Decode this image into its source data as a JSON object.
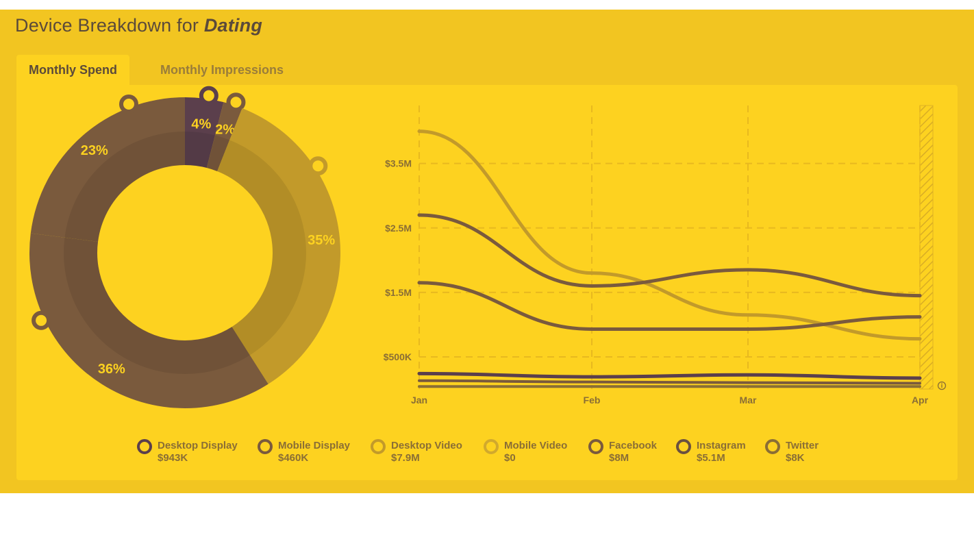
{
  "header": {
    "title_prefix": "Device Breakdown for",
    "title_subject": "Dating"
  },
  "tabs": [
    {
      "label": "Monthly Spend",
      "active": true
    },
    {
      "label": "Monthly Impressions",
      "active": false
    }
  ],
  "colors": {
    "background_band": "#f2c521",
    "panel": "#fdd220",
    "desktop_display": "#5b3f4c",
    "mobile_display": "#7a5a3d",
    "desktop_video": "#c29a2a",
    "mobile_video": "#d1a92d",
    "facebook": "#7a5a3d",
    "instagram": "#6a5040",
    "twitter": "#8a6e35",
    "grid": "#e8b91f",
    "axis_text": "#8a6e35"
  },
  "chart_data": [
    {
      "type": "pie",
      "style": "donut",
      "slices": [
        {
          "label": "4%",
          "value": 4,
          "color": "#5b3f4c",
          "series": "Desktop Display"
        },
        {
          "label": "2%",
          "value": 2,
          "color": "#7a5a3d",
          "series": "Mobile Display"
        },
        {
          "label": "35%",
          "value": 35,
          "color": "#c29a2a",
          "series": "Desktop Video"
        },
        {
          "label": "36%",
          "value": 36,
          "color": "#7a5a3d",
          "series": "Facebook"
        },
        {
          "label": "23%",
          "value": 23,
          "color": "#7a5a3d",
          "series": "Instagram"
        }
      ]
    },
    {
      "type": "line",
      "x": [
        "Jan",
        "Feb",
        "Mar",
        "Apr"
      ],
      "y_ticks": [
        {
          "value": 500000,
          "label": "$500K"
        },
        {
          "value": 1500000,
          "label": "$1.5M"
        },
        {
          "value": 2500000,
          "label": "$2.5M"
        },
        {
          "value": 3500000,
          "label": "$3.5M"
        }
      ],
      "ylim": [
        0,
        4400000
      ],
      "grid": true,
      "series": [
        {
          "values": [
            4000000,
            1800000,
            1150000,
            780000
          ],
          "color": "#c29a2a",
          "width": 5
        },
        {
          "values": [
            2700000,
            1600000,
            1850000,
            1450000
          ],
          "color": "#7a5a3d",
          "width": 5
        },
        {
          "values": [
            1650000,
            930000,
            930000,
            1120000
          ],
          "color": "#7a5a3d",
          "width": 5
        },
        {
          "values": [
            240000,
            190000,
            220000,
            170000
          ],
          "color": "#5b3f4c",
          "width": 5
        },
        {
          "values": [
            130000,
            110000,
            100000,
            90000
          ],
          "color": "#7a5a3d",
          "width": 4
        },
        {
          "values": [
            40000,
            40000,
            40000,
            40000
          ],
          "color": "#8a6e35",
          "width": 4
        }
      ]
    }
  ],
  "legend": [
    {
      "name": "Desktop Display",
      "value": "$943K",
      "color": "#5b3f4c"
    },
    {
      "name": "Mobile Display",
      "value": "$460K",
      "color": "#7a5a3d"
    },
    {
      "name": "Desktop Video",
      "value": "$7.9M",
      "color": "#c29a2a"
    },
    {
      "name": "Mobile Video",
      "value": "$0",
      "color": "#d1a92d"
    },
    {
      "name": "Facebook",
      "value": "$8M",
      "color": "#7a5a3d"
    },
    {
      "name": "Instagram",
      "value": "$5.1M",
      "color": "#6a5040"
    },
    {
      "name": "Twitter",
      "value": "$8K",
      "color": "#8a6e35"
    }
  ],
  "info_icon": "info-icon"
}
